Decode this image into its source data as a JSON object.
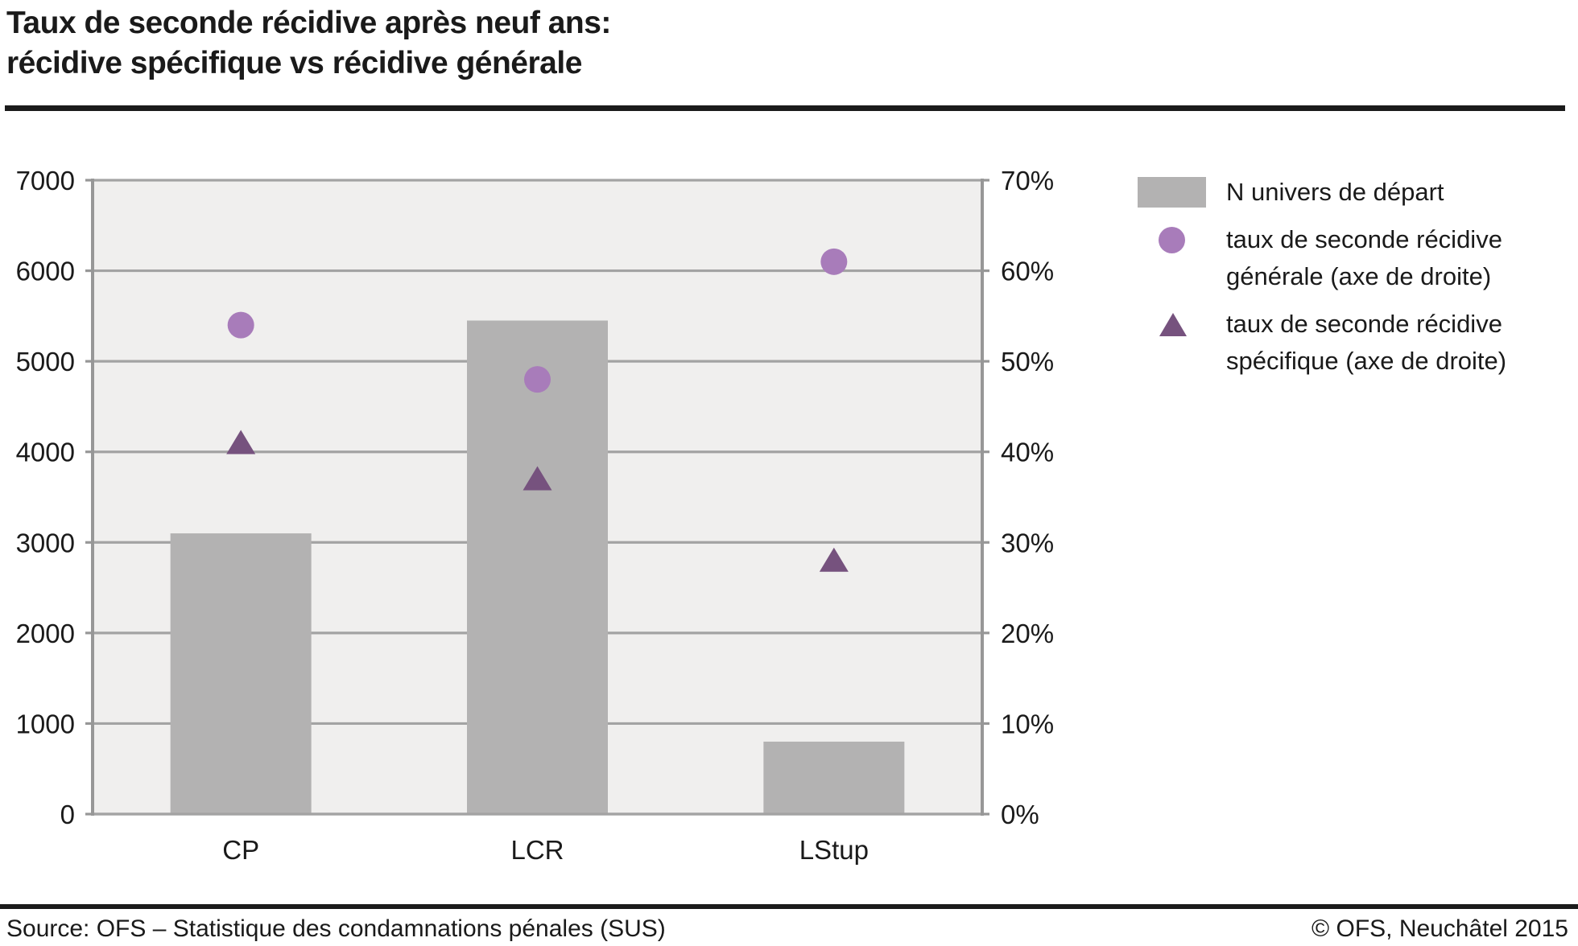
{
  "title": {
    "line1": "Taux de seconde récidive après neuf ans:",
    "line2": "récidive spécifique vs récidive générale"
  },
  "legend": {
    "items": [
      {
        "marker": "bar-swatch",
        "label": "N univers de départ",
        "color": "#b3b2b2"
      },
      {
        "marker": "circle",
        "label": "taux de seconde récidive\ngénérale (axe de droite)",
        "color": "#a87cba"
      },
      {
        "marker": "triangle",
        "label": "taux de seconde récidive\nspécifique (axe de droite)",
        "color": "#76527e"
      }
    ]
  },
  "footer": {
    "source": "Source: OFS – Statistique des condamnations pénales (SUS)",
    "copyright": "© OFS, Neuchâtel 2015"
  },
  "colors": {
    "bar": "#b3b2b2",
    "circle": "#a87cba",
    "triangle": "#76527e",
    "plot_bg": "#f0efee",
    "grid": "#a3a3a3",
    "axis": "#979797",
    "text": "#1a1a1a"
  },
  "chart_data": {
    "type": "bar",
    "subtype": "combo-bar-scatter-dual-axis",
    "title": "Taux de seconde récidive après neuf ans: récidive spécifique vs récidive générale",
    "categories": [
      "CP",
      "LCR",
      "LStup"
    ],
    "series": [
      {
        "name": "N univers de départ",
        "type": "bar",
        "axis": "left",
        "values": [
          3100,
          5450,
          800
        ]
      },
      {
        "name": "taux de seconde récidive générale (axe de droite)",
        "type": "scatter-circle",
        "axis": "right",
        "values": [
          54,
          48,
          61
        ],
        "unit": "%"
      },
      {
        "name": "taux de seconde récidive spécifique (axe de droite)",
        "type": "scatter-triangle",
        "axis": "right",
        "values": [
          41,
          37,
          28
        ],
        "unit": "%"
      }
    ],
    "left_axis": {
      "min": 0,
      "max": 7000,
      "step": 1000,
      "ticks": [
        "0",
        "1000",
        "2000",
        "3000",
        "4000",
        "5000",
        "6000",
        "7000"
      ]
    },
    "right_axis": {
      "min": 0,
      "max": 70,
      "step": 10,
      "ticks": [
        "0%",
        "10%",
        "20%",
        "30%",
        "40%",
        "50%",
        "60%",
        "70%"
      ]
    },
    "grid": true,
    "legend_position": "right",
    "xlabel": "",
    "ylabel": ""
  }
}
